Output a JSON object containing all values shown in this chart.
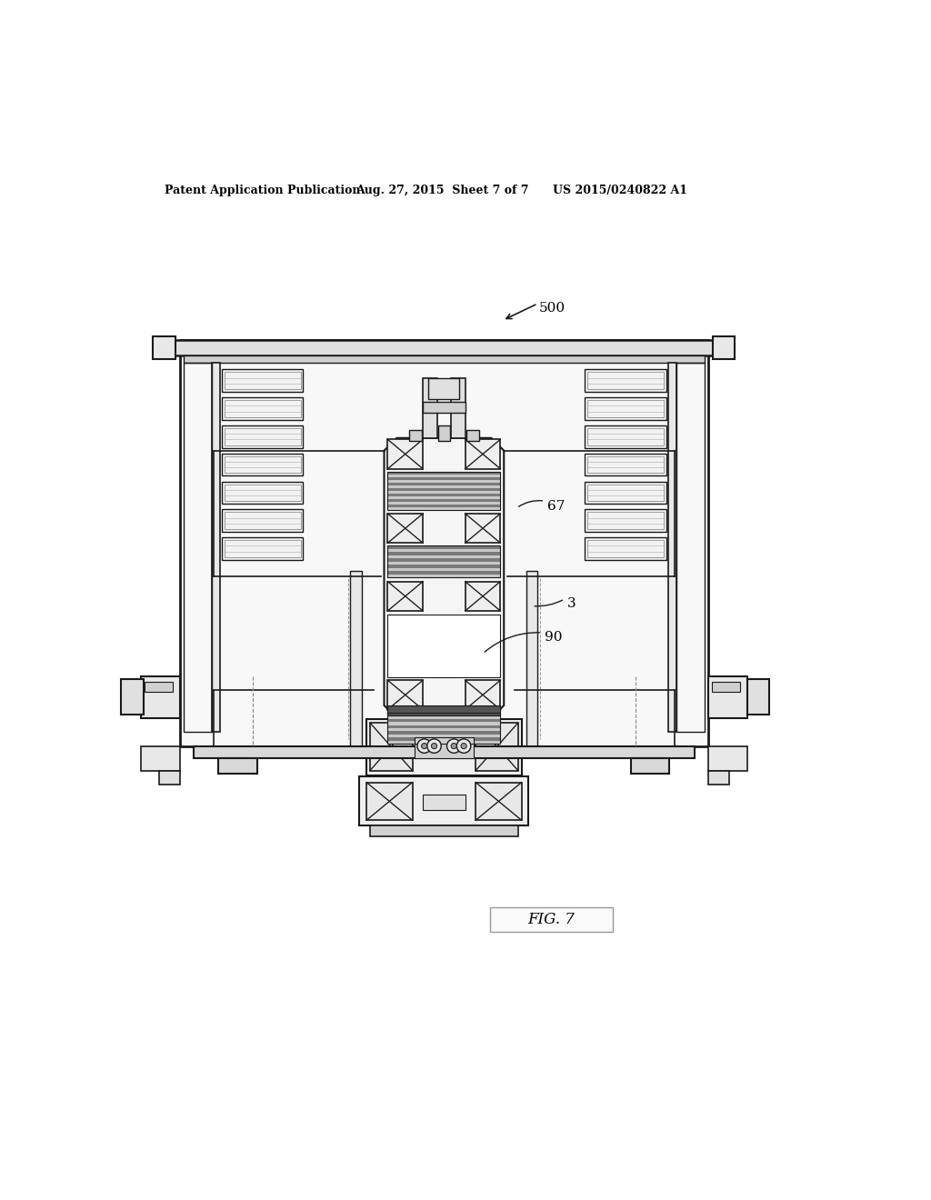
{
  "background_color": "#ffffff",
  "header_left": "Patent Application Publication",
  "header_center": "Aug. 27, 2015  Sheet 7 of 7",
  "header_right": "US 2015/0240822 A1",
  "fig_label": "FIG. 7",
  "ref_500": "500",
  "ref_67": "67",
  "ref_3": "3",
  "ref_90": "90",
  "line_color": "#1a1a1a",
  "gray_color": "#888888",
  "light_gray": "#cccccc",
  "med_gray": "#aaaaaa"
}
